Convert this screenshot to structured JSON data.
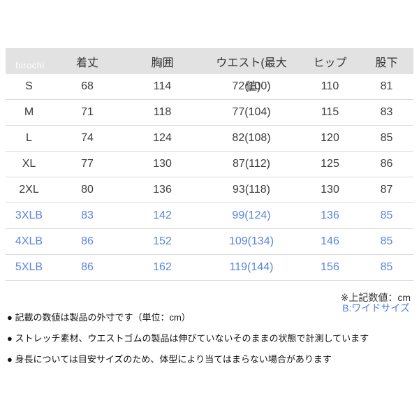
{
  "watermark": "hirochi",
  "colors": {
    "header_bg": "#e2e2e2",
    "row_divider": "#d9d9d9",
    "text_dark": "#3c3c3c",
    "highlight_blue": "#5b84dd",
    "wide_note_blue": "#4f7fe0"
  },
  "table": {
    "headers": [
      "",
      "着丈",
      "胸囲",
      "ウエスト(最大",
      "ヒップ",
      "股下"
    ],
    "header_overflow": "値)",
    "rows": [
      {
        "size": "S",
        "values": [
          "68",
          "114",
          "72(100)",
          "110",
          "81"
        ],
        "highlight": false
      },
      {
        "size": "M",
        "values": [
          "71",
          "118",
          "77(104)",
          "115",
          "83"
        ],
        "highlight": false
      },
      {
        "size": "L",
        "values": [
          "74",
          "124",
          "82(108)",
          "120",
          "85"
        ],
        "highlight": false
      },
      {
        "size": "XL",
        "values": [
          "77",
          "130",
          "87(112)",
          "125",
          "86"
        ],
        "highlight": false
      },
      {
        "size": "2XL",
        "values": [
          "80",
          "136",
          "93(118)",
          "130",
          "87"
        ],
        "highlight": false
      },
      {
        "size": "3XLB",
        "values": [
          "83",
          "142",
          "99(124)",
          "136",
          "85"
        ],
        "highlight": true
      },
      {
        "size": "4XLB",
        "values": [
          "86",
          "152",
          "109(134)",
          "146",
          "85"
        ],
        "highlight": true
      },
      {
        "size": "5XLB",
        "values": [
          "86",
          "162",
          "119(144)",
          "156",
          "85"
        ],
        "highlight": true
      }
    ]
  },
  "notes": {
    "unit_note": "※上記数値：cm",
    "wide_note": "B:ワイドサイズ",
    "bullets": [
      "● 記載の数値は製品の外寸です（単位：cm）",
      "● ストレッチ素材、ウエストゴムの製品は伸びていないそのままの状態で計測しています",
      "● 身長については目安サイズのため、体型により当てはまらない場合があります"
    ]
  }
}
